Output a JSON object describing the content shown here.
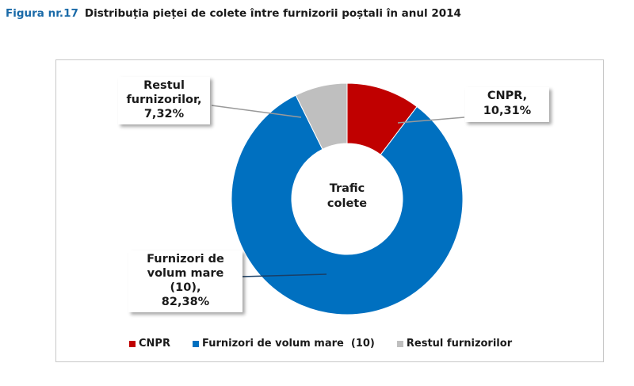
{
  "header": {
    "figure_label": "Figura nr.17",
    "title": "Distribuția pieței de colete între furnizorii poștali în anul 2014"
  },
  "chart_data": {
    "type": "pie",
    "variant": "donut",
    "title": "Distribuția pieței de colete între furnizorii poștali în anul 2014",
    "center_label": "Trafic colete",
    "categories": [
      "CNPR",
      "Furnizori de volum mare (10)",
      "Restul furnizorilor"
    ],
    "values": [
      10.31,
      82.38,
      7.32
    ],
    "unit": "%",
    "colors": [
      "#c00000",
      "#0070c0",
      "#bfbfbf"
    ],
    "legend_position": "bottom",
    "data_labels": [
      "CNPR, 10,31%",
      "Furnizori de volum mare (10), 82,38%",
      "Restul furnizorilor, 7,32%"
    ]
  },
  "labels": {
    "cnpr": [
      "CNPR,",
      "10,31%"
    ],
    "furnizori": [
      "Furnizori de",
      "volum mare",
      "(10),",
      "82,38%"
    ],
    "restul": [
      "Restul",
      "furnizorilor,",
      "7,32%"
    ],
    "center": [
      "Trafic",
      "colete"
    ]
  },
  "legend": {
    "items": [
      {
        "label": "CNPR",
        "color": "#c00000"
      },
      {
        "label": "Furnizori de volum mare  (10)",
        "color": "#0070c0"
      },
      {
        "label": "Restul furnizorilor",
        "color": "#bfbfbf"
      }
    ]
  }
}
